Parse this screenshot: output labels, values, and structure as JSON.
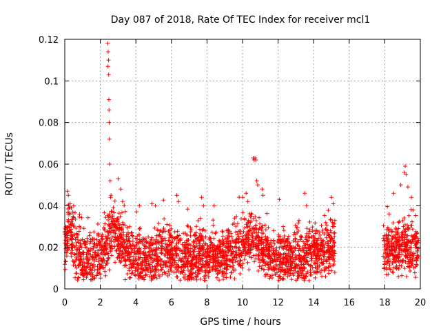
{
  "chart_data": {
    "type": "scatter",
    "title": "Day 087 of 2018, Rate Of TEC Index for receiver mcl1",
    "xlabel": "GPS time / hours",
    "ylabel": "ROTI / TECUs",
    "xlim": [
      0,
      20
    ],
    "ylim": [
      0,
      0.12
    ],
    "xticks": [
      "0",
      "2",
      "4",
      "6",
      "8",
      "10",
      "12",
      "14",
      "16",
      "18",
      "20"
    ],
    "yticks": [
      "0",
      "0.02",
      "0.04",
      "0.06",
      "0.08",
      "0.1",
      "0.12"
    ],
    "grid": true,
    "marker": "+",
    "color": "#ff0000",
    "series": [
      {
        "name": "ROTI",
        "segments": [
          {
            "x_start": 0.0,
            "x_end": 15.2,
            "baseline": [
              [
                0.0,
                0.018
              ],
              [
                0.2,
                0.03
              ],
              [
                0.5,
                0.024
              ],
              [
                0.8,
                0.015
              ],
              [
                1.0,
                0.013
              ],
              [
                1.5,
                0.014
              ],
              [
                2.0,
                0.016
              ],
              [
                2.4,
                0.022
              ],
              [
                2.8,
                0.028
              ],
              [
                3.2,
                0.022
              ],
              [
                3.6,
                0.016
              ],
              [
                4.0,
                0.014
              ],
              [
                4.5,
                0.015
              ],
              [
                5.0,
                0.016
              ],
              [
                5.5,
                0.018
              ],
              [
                6.0,
                0.017
              ],
              [
                6.5,
                0.016
              ],
              [
                7.0,
                0.014
              ],
              [
                7.5,
                0.016
              ],
              [
                8.0,
                0.015
              ],
              [
                8.5,
                0.017
              ],
              [
                9.0,
                0.016
              ],
              [
                9.5,
                0.018
              ],
              [
                10.0,
                0.022
              ],
              [
                10.5,
                0.024
              ],
              [
                11.0,
                0.02
              ],
              [
                11.5,
                0.016
              ],
              [
                12.0,
                0.014
              ],
              [
                12.5,
                0.015
              ],
              [
                13.0,
                0.015
              ],
              [
                13.5,
                0.016
              ],
              [
                14.0,
                0.017
              ],
              [
                14.5,
                0.018
              ],
              [
                15.0,
                0.02
              ],
              [
                15.2,
                0.022
              ]
            ]
          },
          {
            "x_start": 17.9,
            "x_end": 19.9,
            "baseline": [
              [
                17.9,
                0.02
              ],
              [
                18.2,
                0.018
              ],
              [
                18.6,
                0.019
              ],
              [
                19.0,
                0.022
              ],
              [
                19.4,
                0.02
              ],
              [
                19.9,
                0.018
              ]
            ]
          }
        ],
        "spikes": [
          {
            "x": 2.42,
            "y": 0.118
          },
          {
            "x": 2.44,
            "y": 0.114
          },
          {
            "x": 2.46,
            "y": 0.11
          },
          {
            "x": 2.43,
            "y": 0.107
          },
          {
            "x": 2.47,
            "y": 0.103
          },
          {
            "x": 2.48,
            "y": 0.091
          },
          {
            "x": 2.49,
            "y": 0.086
          },
          {
            "x": 2.5,
            "y": 0.08
          },
          {
            "x": 2.51,
            "y": 0.072
          },
          {
            "x": 2.53,
            "y": 0.06
          },
          {
            "x": 2.55,
            "y": 0.052
          },
          {
            "x": 2.6,
            "y": 0.045
          },
          {
            "x": 2.58,
            "y": 0.044
          },
          {
            "x": 3.0,
            "y": 0.053
          },
          {
            "x": 3.15,
            "y": 0.048
          },
          {
            "x": 3.25,
            "y": 0.042
          },
          {
            "x": 0.15,
            "y": 0.047
          },
          {
            "x": 0.2,
            "y": 0.045
          },
          {
            "x": 0.3,
            "y": 0.041
          },
          {
            "x": 0.5,
            "y": 0.04
          },
          {
            "x": 4.2,
            "y": 0.04
          },
          {
            "x": 4.9,
            "y": 0.041
          },
          {
            "x": 5.1,
            "y": 0.04
          },
          {
            "x": 6.3,
            "y": 0.045
          },
          {
            "x": 6.4,
            "y": 0.042
          },
          {
            "x": 7.7,
            "y": 0.044
          },
          {
            "x": 7.8,
            "y": 0.04
          },
          {
            "x": 8.4,
            "y": 0.04
          },
          {
            "x": 10.0,
            "y": 0.044
          },
          {
            "x": 10.2,
            "y": 0.046
          },
          {
            "x": 10.3,
            "y": 0.042
          },
          {
            "x": 10.6,
            "y": 0.063
          },
          {
            "x": 10.65,
            "y": 0.062
          },
          {
            "x": 10.7,
            "y": 0.063
          },
          {
            "x": 10.75,
            "y": 0.062
          },
          {
            "x": 10.8,
            "y": 0.052
          },
          {
            "x": 10.85,
            "y": 0.05
          },
          {
            "x": 11.1,
            "y": 0.048
          },
          {
            "x": 11.15,
            "y": 0.045
          },
          {
            "x": 13.5,
            "y": 0.046
          },
          {
            "x": 13.6,
            "y": 0.04
          },
          {
            "x": 15.0,
            "y": 0.044
          },
          {
            "x": 15.1,
            "y": 0.041
          },
          {
            "x": 18.5,
            "y": 0.046
          },
          {
            "x": 18.9,
            "y": 0.05
          },
          {
            "x": 19.1,
            "y": 0.056
          },
          {
            "x": 19.15,
            "y": 0.059
          },
          {
            "x": 19.2,
            "y": 0.055
          },
          {
            "x": 19.3,
            "y": 0.049
          },
          {
            "x": 19.5,
            "y": 0.044
          },
          {
            "x": 19.6,
            "y": 0.038
          }
        ]
      }
    ]
  }
}
